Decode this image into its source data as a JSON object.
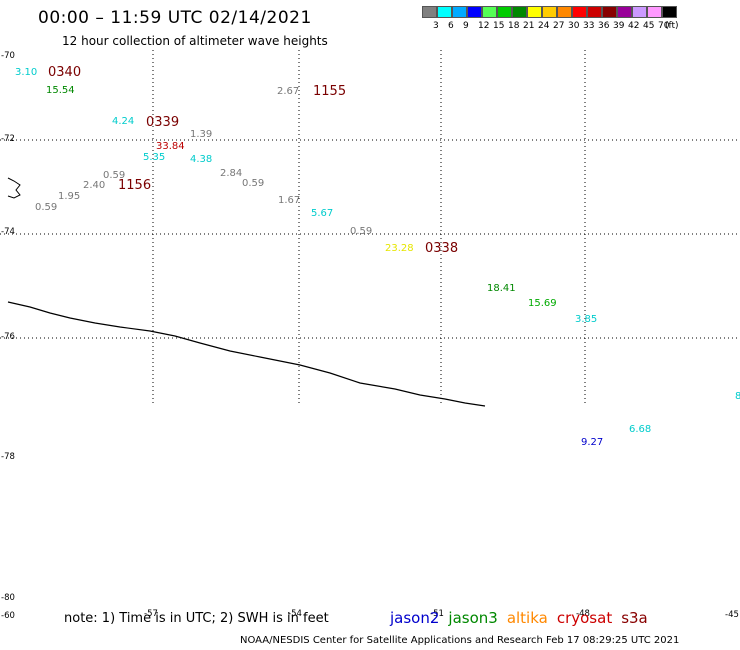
{
  "header": {
    "title": "00:00 – 11:59 UTC 02/14/2021",
    "subtitle": "12 hour collection of altimeter wave heights"
  },
  "legend": {
    "unit": "(ft)",
    "swatches": [
      {
        "color": "#808080",
        "label": "3"
      },
      {
        "color": "#00ffff",
        "label": "6"
      },
      {
        "color": "#00aaff",
        "label": "9"
      },
      {
        "color": "#0000ff",
        "label": "12"
      },
      {
        "color": "#55ff55",
        "label": "15"
      },
      {
        "color": "#00cc00",
        "label": "18"
      },
      {
        "color": "#008800",
        "label": "21"
      },
      {
        "color": "#ffff00",
        "label": "24"
      },
      {
        "color": "#ffcc00",
        "label": "27"
      },
      {
        "color": "#ff8800",
        "label": "30"
      },
      {
        "color": "#ff0000",
        "label": "33"
      },
      {
        "color": "#cc0000",
        "label": "36"
      },
      {
        "color": "#880000",
        "label": "39"
      },
      {
        "color": "#990099",
        "label": "42"
      },
      {
        "color": "#cc99ff",
        "label": "45"
      },
      {
        "color": "#ff99ff",
        "label": "70"
      },
      {
        "color": "#000000",
        "label": ""
      }
    ]
  },
  "map": {
    "lat_labels": [
      "-70",
      "-72",
      "-74",
      "-76",
      "-78",
      "-80"
    ],
    "lon_labels": [
      "-60",
      "-57",
      "-54",
      "-51",
      "-48",
      "-45"
    ],
    "wave_heights": [
      {
        "v": "3.10",
        "c": "#00cccc"
      },
      {
        "v": "15.54",
        "c": "#008800"
      },
      {
        "v": "2.67",
        "c": "#777777"
      },
      {
        "v": "4.24",
        "c": "#00cccc"
      },
      {
        "v": "1.39",
        "c": "#777777"
      },
      {
        "v": "33.84",
        "c": "#bb0000"
      },
      {
        "v": "5.35",
        "c": "#00cccc"
      },
      {
        "v": "4.38",
        "c": "#00cccc"
      },
      {
        "v": "0.59",
        "c": "#777777"
      },
      {
        "v": "2.40",
        "c": "#777777"
      },
      {
        "v": "1.95",
        "c": "#777777"
      },
      {
        "v": "0.59",
        "c": "#777777"
      },
      {
        "v": "2.84",
        "c": "#777777"
      },
      {
        "v": "0.59",
        "c": "#777777"
      },
      {
        "v": "1.67",
        "c": "#777777"
      },
      {
        "v": "5.67",
        "c": "#00cccc"
      },
      {
        "v": "0.59",
        "c": "#777777"
      },
      {
        "v": "23.28",
        "c": "#e6e600"
      },
      {
        "v": "18.41",
        "c": "#008800"
      },
      {
        "v": "15.69",
        "c": "#00aa00"
      },
      {
        "v": "3.85",
        "c": "#00cccc"
      },
      {
        "v": "6.68",
        "c": "#00cccc"
      },
      {
        "v": "9.27",
        "c": "#0000cc"
      },
      {
        "v": "8",
        "c": "#00cccc"
      }
    ],
    "pass_times": [
      "0340",
      "1155",
      "0339",
      "1156",
      "0338"
    ]
  },
  "footer": {
    "note": "note:  1) Time is in UTC;  2) SWH is in feet",
    "satellites": [
      {
        "name": "jason2",
        "color": "#0000cc"
      },
      {
        "name": "jason3",
        "color": "#008800"
      },
      {
        "name": "altika",
        "color": "#ff8800"
      },
      {
        "name": "cryosat",
        "color": "#cc0000"
      },
      {
        "name": "s3a",
        "color": "#880000"
      }
    ],
    "credit": "NOAA/NESDIS Center for Satellite Applications and Research    Feb 17 08:29:25 UTC 2021"
  }
}
